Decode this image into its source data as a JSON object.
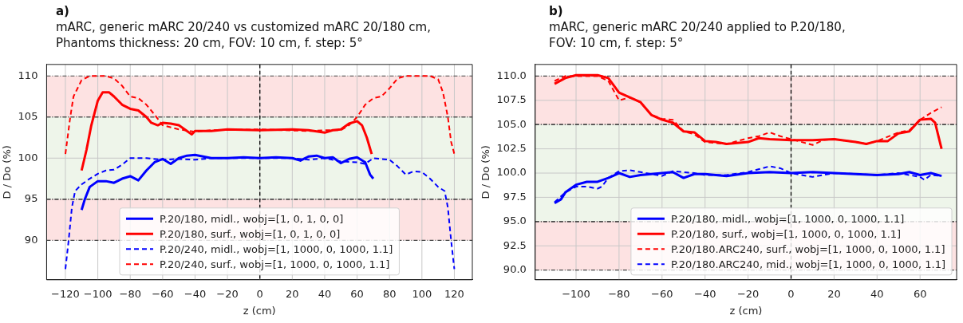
{
  "chart_data": [
    {
      "type": "line",
      "title": "a)",
      "subtitle": "mARC, generic mARC 20/240 vs customized mARC 20/180 cm,\nPhantoms thickness: 20 cm, FOV: 10 cm, f. step: 5°",
      "xlabel": "z (cm)",
      "ylabel": "D / Do (%)",
      "xlim": [
        -131.6,
        131.1
      ],
      "xticks": [
        -120,
        -100,
        -80,
        -60,
        -40,
        -20,
        0,
        20,
        40,
        60,
        80,
        100,
        120
      ],
      "ylim": [
        85.2,
        111.4
      ],
      "yticks": [
        90,
        95,
        100,
        105,
        110
      ],
      "grid": true,
      "legend": "bottom",
      "marker": "none",
      "bands": [
        {
          "axis": "y",
          "from": 105,
          "to": 110,
          "color": "#fde2e2"
        },
        {
          "axis": "y",
          "from": 95,
          "to": 105,
          "color": "#eef5ea"
        },
        {
          "axis": "y",
          "from": 90,
          "to": 95,
          "color": "#fde2e2"
        }
      ],
      "ref_lines": [
        {
          "axis": "x",
          "value": 0,
          "color": "#000000",
          "line_style": "dashed"
        }
      ],
      "series": [
        {
          "name": "P.20/180, midl., wobj=[1, 0, 1, 0, 0]",
          "color": "#0000ff",
          "line_style": "solid",
          "x": [
            -110,
            -108,
            -105,
            -100,
            -95,
            -90,
            -85,
            -80,
            -75,
            -70,
            -65,
            -60,
            -55,
            -50,
            -45,
            -40,
            -35,
            -30,
            -20,
            -10,
            0,
            10,
            20,
            25,
            30,
            35,
            40,
            45,
            50,
            55,
            60,
            65,
            68,
            70
          ],
          "values": [
            93.7,
            95,
            96.5,
            97.2,
            97.2,
            97,
            97.5,
            97.8,
            97.3,
            98.5,
            99.5,
            99.9,
            99.3,
            100,
            100.3,
            100.4,
            100.2,
            100,
            100,
            100.1,
            100,
            100.1,
            100,
            99.7,
            100.2,
            100.3,
            100,
            100.1,
            99.4,
            99.9,
            100.1,
            99.5,
            98,
            97.5
          ]
        },
        {
          "name": "P.20/180, surf., wobj=[1, 0, 1, 0, 0]",
          "color": "#ff0000",
          "line_style": "solid",
          "x": [
            -110,
            -107,
            -104,
            -100,
            -97,
            -93,
            -90,
            -85,
            -80,
            -75,
            -70,
            -67,
            -63,
            -60,
            -55,
            -50,
            -45,
            -42,
            -40,
            -30,
            -20,
            0,
            20,
            30,
            40,
            45,
            50,
            55,
            60,
            63,
            66,
            69
          ],
          "values": [
            98.5,
            101,
            104,
            107,
            108,
            108,
            107.5,
            106.5,
            106,
            105.8,
            105,
            104.3,
            104,
            104.3,
            104.2,
            104,
            103.3,
            102.9,
            103.3,
            103.3,
            103.5,
            103.4,
            103.5,
            103.4,
            103.1,
            103.4,
            103.5,
            104.2,
            104.5,
            104,
            102.5,
            100.5
          ]
        },
        {
          "name": "P.20/240, midl., wobj=[1, 1000, 0, 1000, 1.1]",
          "color": "#0000ff",
          "line_style": "dashed",
          "x": [
            -120,
            -118,
            -116,
            -114,
            -110,
            -105,
            -100,
            -95,
            -90,
            -85,
            -80,
            -70,
            -60,
            -50,
            -40,
            -30,
            -20,
            0,
            20,
            30,
            40,
            50,
            60,
            65,
            70,
            80,
            85,
            90,
            95,
            100,
            105,
            110,
            114,
            116,
            118,
            120
          ],
          "values": [
            86.5,
            90,
            94,
            96,
            96.8,
            97.5,
            98.1,
            98.5,
            98.6,
            99.2,
            100,
            100,
            99.8,
            99.9,
            99.8,
            100,
            100,
            100,
            100,
            99.8,
            100,
            99.6,
            99.5,
            99.3,
            100,
            99.8,
            99,
            98,
            98.4,
            98.3,
            97.5,
            96.5,
            96,
            94,
            90,
            86.5
          ]
        },
        {
          "name": "P.20/240, surf., wobj=[1, 1000, 0, 1000, 1.1]",
          "color": "#ff0000",
          "line_style": "dashed",
          "x": [
            -120,
            -117,
            -115,
            -110,
            -105,
            -100,
            -95,
            -90,
            -85,
            -80,
            -75,
            -70,
            -65,
            -60,
            -50,
            -40,
            -30,
            0,
            30,
            40,
            50,
            55,
            60,
            65,
            70,
            75,
            80,
            85,
            90,
            100,
            105,
            110,
            113,
            116,
            118,
            120
          ],
          "values": [
            100.5,
            105,
            107.5,
            109.5,
            110,
            110,
            110,
            109.7,
            108.8,
            107.5,
            107.3,
            106.5,
            105.3,
            104,
            103.5,
            103.2,
            103.4,
            103.5,
            103.3,
            103.4,
            103.4,
            104,
            105,
            106.5,
            107.3,
            107.5,
            108.5,
            109.7,
            110,
            110,
            110,
            109.6,
            108,
            105,
            102,
            100.5
          ]
        }
      ]
    },
    {
      "type": "line",
      "title": "b)",
      "subtitle": "mARC, generic mARC 20/240 applied to P.20/180,\nFOV: 10 cm, f. step: 5°",
      "xlabel": "z (cm)",
      "ylabel": "D / Do (%)",
      "xlim": [
        -119,
        77
      ],
      "xticks": [
        -100,
        -80,
        -60,
        -40,
        -20,
        0,
        20,
        40,
        60
      ],
      "ylim": [
        89.0,
        111.2
      ],
      "yticks": [
        {
          "value": 90,
          "label": "90.0"
        },
        {
          "value": 92.5,
          "label": "92.5"
        },
        {
          "value": 95,
          "label": "95.0"
        },
        {
          "value": 97.5,
          "label": "97.5"
        },
        {
          "value": 100,
          "label": "100.0"
        },
        {
          "value": 102.5,
          "label": "102.5"
        },
        {
          "value": 105,
          "label": "105.0"
        },
        {
          "value": 107.5,
          "label": "107.5"
        },
        {
          "value": 110,
          "label": "110.0"
        }
      ],
      "grid": true,
      "legend": "bottom right",
      "marker": "none",
      "bands": [
        {
          "axis": "y",
          "from": 105,
          "to": 110,
          "color": "#fde2e2"
        },
        {
          "axis": "y",
          "from": 95,
          "to": 105,
          "color": "#eef5ea"
        },
        {
          "axis": "y",
          "from": 90,
          "to": 95,
          "color": "#fde2e2"
        }
      ],
      "ref_lines": [
        {
          "axis": "x",
          "value": 0,
          "color": "#000000",
          "line_style": "dashed"
        }
      ],
      "series": [
        {
          "name": "P.20/180, midl., wobj=[1, 1000, 0, 1000, 1.1]",
          "color": "#0000ff",
          "line_style": "solid",
          "x": [
            -110,
            -107,
            -105,
            -100,
            -95,
            -90,
            -85,
            -80,
            -75,
            -70,
            -60,
            -55,
            -50,
            -45,
            -40,
            -30,
            -20,
            -10,
            0,
            10,
            20,
            30,
            40,
            50,
            55,
            60,
            65,
            70
          ],
          "values": [
            96.9,
            97.3,
            98,
            98.8,
            99.1,
            99.1,
            99.5,
            100,
            99.6,
            99.8,
            100,
            100.1,
            99.5,
            99.9,
            99.9,
            99.7,
            100,
            100.1,
            100,
            100.1,
            100,
            99.9,
            99.8,
            99.9,
            100.1,
            99.8,
            100,
            99.7
          ]
        },
        {
          "name": "P.20/180, surf., wobj=[1, 1000, 0, 1000, 1.1]",
          "color": "#ff0000",
          "line_style": "solid",
          "x": [
            -110,
            -105,
            -100,
            -90,
            -85,
            -80,
            -75,
            -70,
            -65,
            -60,
            -55,
            -50,
            -45,
            -40,
            -35,
            -30,
            -20,
            -15,
            -10,
            0,
            10,
            20,
            30,
            35,
            40,
            45,
            50,
            55,
            60,
            65,
            67,
            70
          ],
          "values": [
            109.2,
            109.8,
            110.1,
            110.1,
            109.8,
            108.3,
            107.8,
            107.3,
            106,
            105.5,
            105.2,
            104.3,
            104.2,
            103.3,
            103.2,
            103,
            103.2,
            103.6,
            103.5,
            103.4,
            103.4,
            103.5,
            103.2,
            103,
            103.3,
            103.3,
            104.1,
            104.3,
            105.5,
            105.6,
            105.2,
            102.5
          ]
        },
        {
          "name": "P.20/180.ARC240, surf., wobj=[1, 1000, 0, 1000, 1.1]",
          "color": "#ff0000",
          "line_style": "dashed",
          "x": [
            -110,
            -105,
            -100,
            -90,
            -85,
            -80,
            -75,
            -70,
            -65,
            -60,
            -55,
            -50,
            -45,
            -40,
            -30,
            -20,
            -15,
            -10,
            -5,
            0,
            5,
            10,
            15,
            20,
            30,
            35,
            40,
            50,
            55,
            60,
            65,
            70
          ],
          "values": [
            109.5,
            110,
            110,
            110,
            109.5,
            107.5,
            107.8,
            107.3,
            106,
            105.6,
            105.5,
            104.3,
            104,
            103.2,
            103,
            103.6,
            103.8,
            104.2,
            103.8,
            103.5,
            103.2,
            102.9,
            103.4,
            103.5,
            103.2,
            103,
            103.3,
            104.2,
            104.4,
            105.5,
            106.2,
            106.8
          ]
        },
        {
          "name": "P.20/180.ARC240, mid., wobj=[1, 1000, 0, 1000, 1.1]",
          "color": "#0000ff",
          "line_style": "dashed",
          "x": [
            -110,
            -105,
            -100,
            -95,
            -90,
            -88,
            -85,
            -80,
            -75,
            -70,
            -60,
            -55,
            -50,
            -45,
            -40,
            -30,
            -20,
            -10,
            -5,
            0,
            5,
            10,
            20,
            30,
            40,
            50,
            60,
            62,
            65,
            70
          ],
          "values": [
            97,
            98,
            98.6,
            98.6,
            98.4,
            98.6,
            99.5,
            100.2,
            100.3,
            100.1,
            99.7,
            100.2,
            100.1,
            100,
            99.8,
            99.8,
            100.1,
            100.7,
            100.5,
            100,
            99.8,
            99.6,
            100,
            99.9,
            99.8,
            100,
            99.6,
            99.3,
            99.8,
            99.7
          ]
        }
      ]
    }
  ]
}
